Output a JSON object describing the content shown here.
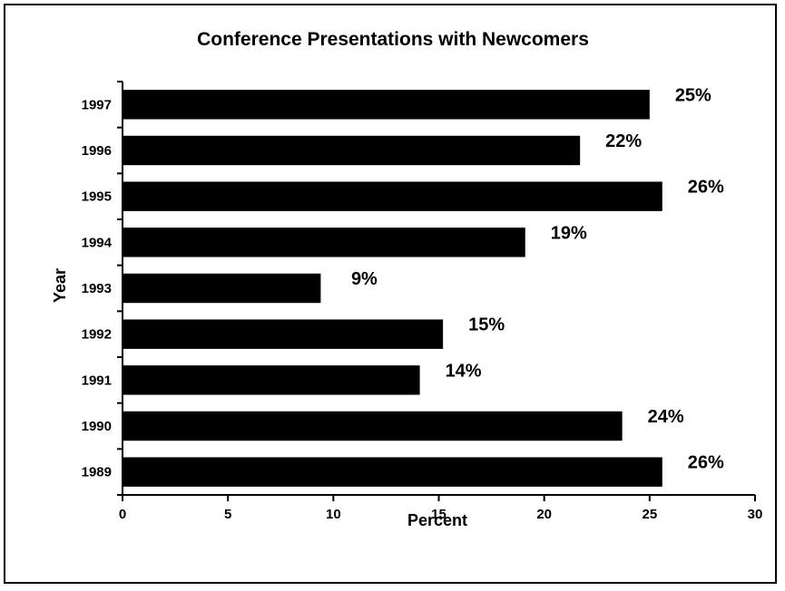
{
  "chart_data": {
    "type": "bar",
    "orientation": "horizontal",
    "title": "Conference Presentations with Newcomers",
    "xlabel": "Percent",
    "ylabel": "Year",
    "categories": [
      "1997",
      "1996",
      "1995",
      "1994",
      "1993",
      "1992",
      "1991",
      "1990",
      "1989"
    ],
    "values": [
      25,
      21.7,
      25.6,
      19.1,
      9.4,
      15.2,
      14.1,
      23.7,
      25.6
    ],
    "data_labels": [
      "25%",
      "22%",
      "26%",
      "19%",
      "9%",
      "15%",
      "14%",
      "24%",
      "26%"
    ],
    "xlim": [
      0,
      30
    ],
    "xticks": [
      "0",
      "5",
      "10",
      "15",
      "20",
      "25",
      "30"
    ],
    "grid": false,
    "legend": "none",
    "bar_color": "#000000"
  }
}
